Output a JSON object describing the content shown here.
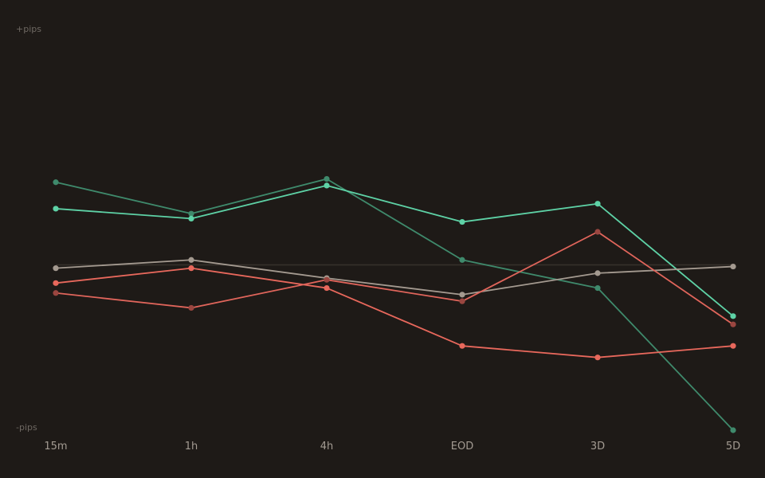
{
  "chart_data": {
    "type": "line",
    "categories": [
      "15m",
      "1h",
      "4h",
      "EOD",
      "3D",
      "5D"
    ],
    "y_top_label": "+pips",
    "y_bottom_label": "-pips",
    "ylim": [
      -100,
      100
    ],
    "baseline": 0,
    "grid": false,
    "legend": "none",
    "series": [
      {
        "color": "#3f8a6c",
        "opacity": 1,
        "dot": "#3f8a6c",
        "values": [
          50,
          31,
          52,
          3,
          -14,
          -100
        ]
      },
      {
        "color": "#5ed2a6",
        "opacity": 1,
        "dot": "#5ed2a6",
        "values": [
          34,
          28,
          48,
          26,
          37,
          -31
        ]
      },
      {
        "color": "#a49a90",
        "opacity": 1,
        "dot": "#a49a90",
        "values": [
          -2,
          3,
          -8,
          -18,
          -5,
          -1
        ]
      },
      {
        "color": "#e8685c",
        "opacity": 1,
        "dot": "#e8685c",
        "values": [
          -11,
          -2,
          -14,
          -49,
          -56,
          -49
        ]
      },
      {
        "color": "#e0655b",
        "opacity": 1,
        "dot": "#9a4640",
        "values": [
          -17,
          -26,
          -9,
          -22,
          20,
          -36
        ]
      }
    ],
    "colors": {
      "background": "#1e1a17",
      "baseline": "#37312c"
    }
  }
}
